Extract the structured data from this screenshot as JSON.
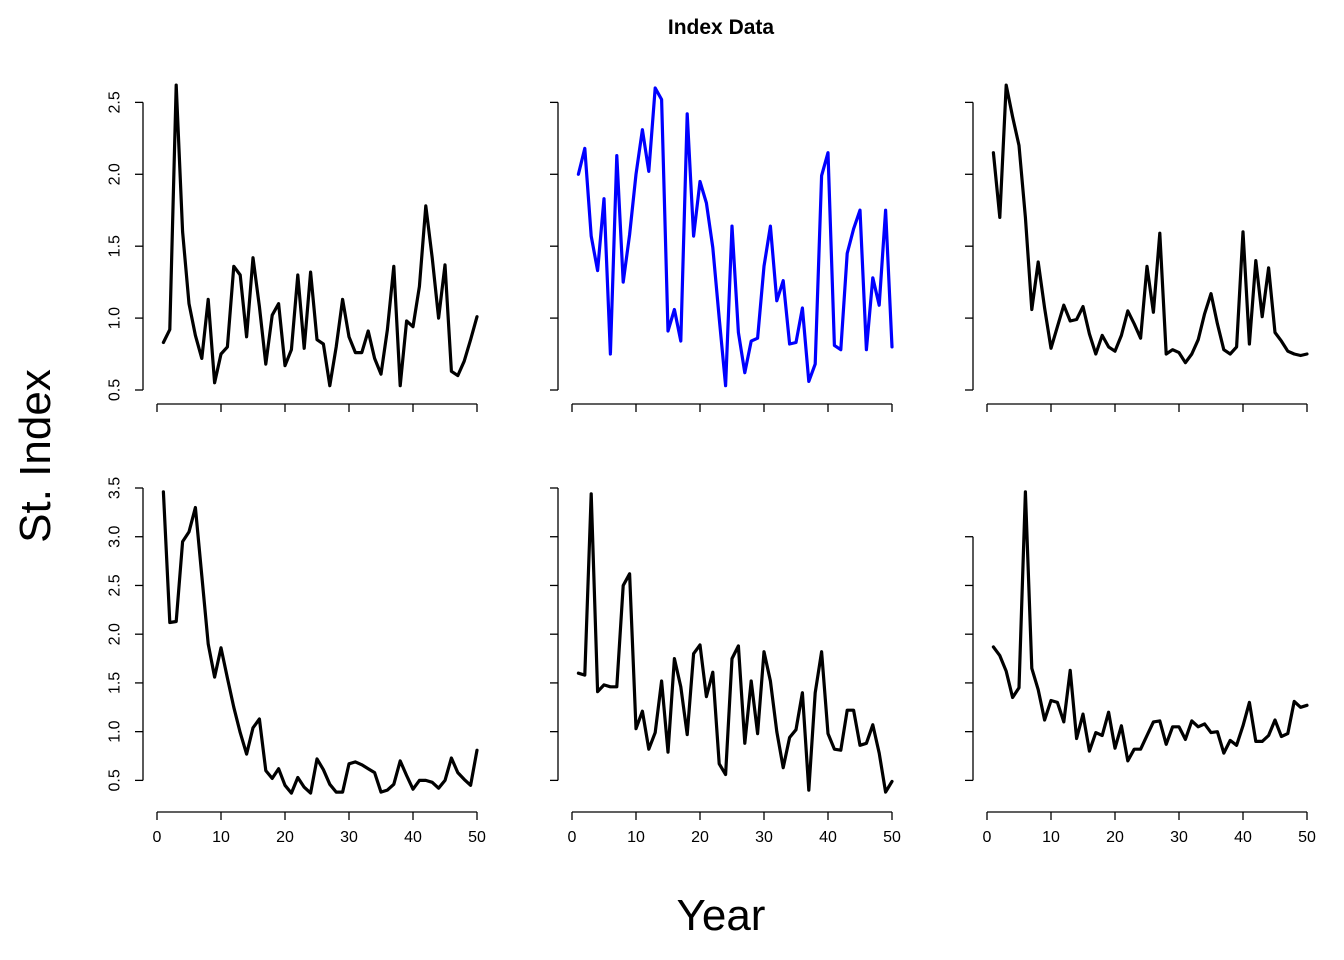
{
  "figure": {
    "title": "Index Data",
    "xlabel": "Year",
    "ylabel": "St. Index"
  },
  "colors": {
    "line": "#000000",
    "highlight": "#0000ff",
    "axis": "#000000"
  },
  "chart_data": [
    {
      "type": "line",
      "color": "#000000",
      "xlim": [
        0,
        50
      ],
      "ylim": [
        0.5,
        2.6
      ],
      "x_ticks": [
        0,
        10,
        20,
        30,
        40,
        50
      ],
      "show_x_labels": false,
      "y_ticks": [
        0.5,
        1.0,
        1.5,
        2.0,
        2.5
      ],
      "y_tick_labels": [
        "0.5",
        "1.0",
        "1.5",
        "2.0",
        "2.5"
      ],
      "x": [
        1,
        2,
        3,
        4,
        5,
        6,
        7,
        8,
        9,
        10,
        11,
        12,
        13,
        14,
        15,
        16,
        17,
        18,
        19,
        20,
        21,
        22,
        23,
        24,
        25,
        26,
        27,
        28,
        29,
        30,
        31,
        32,
        33,
        34,
        35,
        36,
        37,
        38,
        39,
        40,
        41,
        42,
        43,
        44,
        45,
        46,
        47,
        48,
        49,
        50
      ],
      "values": [
        0.83,
        0.92,
        2.62,
        1.6,
        1.1,
        0.88,
        0.72,
        1.13,
        0.55,
        0.75,
        0.8,
        1.36,
        1.3,
        0.87,
        1.42,
        1.08,
        0.68,
        1.02,
        1.1,
        0.67,
        0.78,
        1.3,
        0.79,
        1.32,
        0.85,
        0.82,
        0.53,
        0.8,
        1.13,
        0.87,
        0.76,
        0.76,
        0.91,
        0.72,
        0.61,
        0.92,
        1.36,
        0.53,
        0.98,
        0.94,
        1.22,
        1.78,
        1.42,
        1.0,
        1.37,
        0.63,
        0.6,
        0.7,
        0.85,
        1.01
      ]
    },
    {
      "type": "line",
      "color": "#0000ff",
      "xlim": [
        0,
        50
      ],
      "ylim": [
        0.5,
        2.6
      ],
      "x_ticks": [
        0,
        10,
        20,
        30,
        40,
        50
      ],
      "show_x_labels": false,
      "y_ticks": [
        0.5,
        1.0,
        1.5,
        2.0,
        2.5
      ],
      "y_tick_labels": [
        "",
        "",
        "",
        "",
        ""
      ],
      "x": [
        1,
        2,
        3,
        4,
        5,
        6,
        7,
        8,
        9,
        10,
        11,
        12,
        13,
        14,
        15,
        16,
        17,
        18,
        19,
        20,
        21,
        22,
        23,
        24,
        25,
        26,
        27,
        28,
        29,
        30,
        31,
        32,
        33,
        34,
        35,
        36,
        37,
        38,
        39,
        40,
        41,
        42,
        43,
        44,
        45,
        46,
        47,
        48,
        49,
        50
      ],
      "values": [
        2.0,
        2.18,
        1.57,
        1.33,
        1.83,
        0.75,
        2.13,
        1.25,
        1.58,
        2.0,
        2.31,
        2.02,
        2.6,
        2.52,
        0.91,
        1.06,
        0.84,
        2.42,
        1.57,
        1.95,
        1.8,
        1.49,
        1.0,
        0.53,
        1.64,
        0.9,
        0.62,
        0.84,
        0.86,
        1.36,
        1.64,
        1.12,
        1.26,
        0.82,
        0.83,
        1.07,
        0.56,
        0.68,
        1.99,
        2.15,
        0.81,
        0.78,
        1.45,
        1.62,
        1.75,
        0.78,
        1.28,
        1.09,
        1.75,
        0.8
      ]
    },
    {
      "type": "line",
      "color": "#000000",
      "xlim": [
        0,
        50
      ],
      "ylim": [
        0.5,
        2.6
      ],
      "x_ticks": [
        0,
        10,
        20,
        30,
        40,
        50
      ],
      "show_x_labels": false,
      "y_ticks": [
        0.5,
        1.0,
        1.5,
        2.0,
        2.5
      ],
      "y_tick_labels": [
        "",
        "",
        "",
        "",
        ""
      ],
      "x": [
        1,
        2,
        3,
        4,
        5,
        6,
        7,
        8,
        9,
        10,
        11,
        12,
        13,
        14,
        15,
        16,
        17,
        18,
        19,
        20,
        21,
        22,
        23,
        24,
        25,
        26,
        27,
        28,
        29,
        30,
        31,
        32,
        33,
        34,
        35,
        36,
        37,
        38,
        39,
        40,
        41,
        42,
        43,
        44,
        45,
        46,
        47,
        48,
        49,
        50
      ],
      "values": [
        2.15,
        1.7,
        2.62,
        2.4,
        2.2,
        1.7,
        1.06,
        1.39,
        1.07,
        0.79,
        0.94,
        1.09,
        0.98,
        0.99,
        1.08,
        0.89,
        0.75,
        0.88,
        0.8,
        0.77,
        0.88,
        1.05,
        0.96,
        0.86,
        1.36,
        1.04,
        1.59,
        0.75,
        0.78,
        0.76,
        0.69,
        0.75,
        0.85,
        1.03,
        1.17,
        0.96,
        0.78,
        0.75,
        0.8,
        1.6,
        0.82,
        1.4,
        1.01,
        1.35,
        0.9,
        0.84,
        0.77,
        0.75,
        0.74,
        0.75
      ]
    },
    {
      "type": "line",
      "color": "#000000",
      "xlim": [
        0,
        50
      ],
      "ylim": [
        0.35,
        3.5
      ],
      "x_ticks": [
        0,
        10,
        20,
        30,
        40,
        50
      ],
      "show_x_labels": true,
      "x_tick_labels": [
        "0",
        "10",
        "20",
        "30",
        "40",
        "50"
      ],
      "y_ticks": [
        0.5,
        1.0,
        1.5,
        2.0,
        2.5,
        3.0,
        3.5
      ],
      "y_tick_labels": [
        "0.5",
        "1.0",
        "1.5",
        "2.0",
        "2.5",
        "3.0",
        "3.5"
      ],
      "x": [
        1,
        2,
        3,
        4,
        5,
        6,
        7,
        8,
        9,
        10,
        11,
        12,
        13,
        14,
        15,
        16,
        17,
        18,
        19,
        20,
        21,
        22,
        23,
        24,
        25,
        26,
        27,
        28,
        29,
        30,
        31,
        32,
        33,
        34,
        35,
        36,
        37,
        38,
        39,
        40,
        41,
        42,
        43,
        44,
        45,
        46,
        47,
        48,
        49,
        50
      ],
      "values": [
        3.46,
        2.12,
        2.13,
        2.95,
        3.05,
        3.3,
        2.6,
        1.9,
        1.56,
        1.86,
        1.55,
        1.25,
        0.99,
        0.77,
        1.04,
        1.13,
        0.6,
        0.52,
        0.62,
        0.45,
        0.37,
        0.53,
        0.43,
        0.37,
        0.72,
        0.61,
        0.46,
        0.38,
        0.38,
        0.67,
        0.69,
        0.66,
        0.62,
        0.58,
        0.38,
        0.4,
        0.46,
        0.7,
        0.55,
        0.41,
        0.5,
        0.5,
        0.48,
        0.42,
        0.5,
        0.73,
        0.58,
        0.51,
        0.45,
        0.81
      ]
    },
    {
      "type": "line",
      "color": "#000000",
      "xlim": [
        0,
        50
      ],
      "ylim": [
        0.35,
        3.5
      ],
      "x_ticks": [
        0,
        10,
        20,
        30,
        40,
        50
      ],
      "show_x_labels": true,
      "x_tick_labels": [
        "0",
        "10",
        "20",
        "30",
        "40",
        "50"
      ],
      "y_ticks": [
        0.5,
        1.0,
        1.5,
        2.0,
        2.5,
        3.0,
        3.5
      ],
      "y_tick_labels": [
        "",
        "",
        "",
        "",
        "",
        "",
        ""
      ],
      "x": [
        1,
        2,
        3,
        4,
        5,
        6,
        7,
        8,
        9,
        10,
        11,
        12,
        13,
        14,
        15,
        16,
        17,
        18,
        19,
        20,
        21,
        22,
        23,
        24,
        25,
        26,
        27,
        28,
        29,
        30,
        31,
        32,
        33,
        34,
        35,
        36,
        37,
        38,
        39,
        40,
        41,
        42,
        43,
        44,
        45,
        46,
        47,
        48,
        49,
        50
      ],
      "values": [
        1.6,
        1.58,
        3.44,
        1.41,
        1.48,
        1.46,
        1.46,
        2.5,
        2.62,
        1.03,
        1.21,
        0.82,
        0.99,
        1.52,
        0.79,
        1.75,
        1.46,
        0.97,
        1.8,
        1.89,
        1.36,
        1.61,
        0.67,
        0.56,
        1.75,
        1.88,
        0.88,
        1.52,
        0.98,
        1.82,
        1.52,
        1.0,
        0.63,
        0.94,
        1.02,
        1.4,
        0.4,
        1.4,
        1.82,
        0.98,
        0.82,
        0.81,
        1.22,
        1.22,
        0.86,
        0.88,
        1.07,
        0.78,
        0.38,
        0.49
      ]
    },
    {
      "type": "line",
      "color": "#000000",
      "xlim": [
        0,
        50
      ],
      "ylim": [
        0.35,
        3.5
      ],
      "x_ticks": [
        0,
        10,
        20,
        30,
        40,
        50
      ],
      "show_x_labels": true,
      "x_tick_labels": [
        "0",
        "10",
        "20",
        "30",
        "40",
        "50"
      ],
      "y_ticks": [
        0.5,
        1.0,
        1.5,
        2.0,
        2.5,
        3.0
      ],
      "y_tick_labels": [
        "",
        "",
        "",
        "",
        "",
        ""
      ],
      "x": [
        1,
        2,
        3,
        4,
        5,
        6,
        7,
        8,
        9,
        10,
        11,
        12,
        13,
        14,
        15,
        16,
        17,
        18,
        19,
        20,
        21,
        22,
        23,
        24,
        25,
        26,
        27,
        28,
        29,
        30,
        31,
        32,
        33,
        34,
        35,
        36,
        37,
        38,
        39,
        40,
        41,
        42,
        43,
        44,
        45,
        46,
        47,
        48,
        49,
        50
      ],
      "values": [
        1.87,
        1.78,
        1.62,
        1.35,
        1.45,
        3.46,
        1.65,
        1.43,
        1.12,
        1.32,
        1.3,
        1.1,
        1.63,
        0.93,
        1.18,
        0.8,
        0.99,
        0.96,
        1.2,
        0.83,
        1.06,
        0.7,
        0.82,
        0.82,
        0.96,
        1.1,
        1.11,
        0.87,
        1.05,
        1.05,
        0.92,
        1.11,
        1.05,
        1.08,
        0.99,
        1.0,
        0.78,
        0.91,
        0.86,
        1.06,
        1.3,
        0.9,
        0.9,
        0.96,
        1.12,
        0.95,
        0.98,
        1.31,
        1.25,
        1.27
      ]
    }
  ]
}
